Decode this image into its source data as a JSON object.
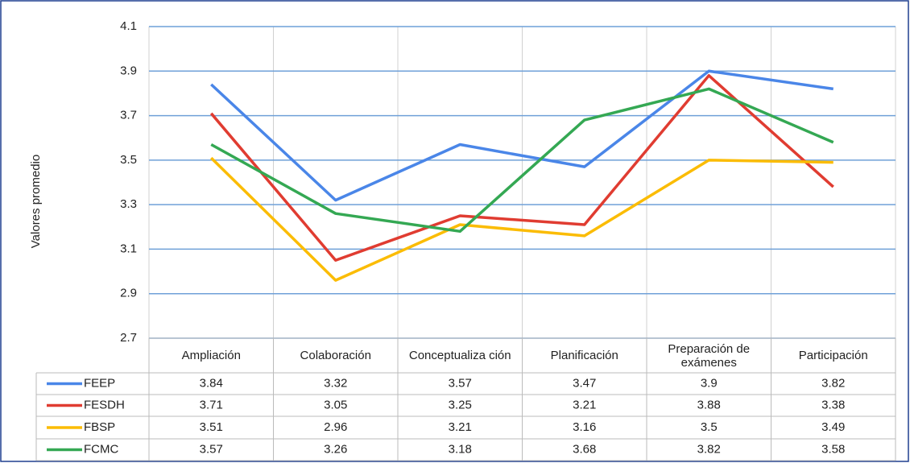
{
  "chart_data": {
    "type": "line",
    "y_label": "Valores promedio",
    "categories": [
      "Ampliación",
      "Colaboración",
      "Conceptualiza ción",
      "Planificación",
      "Preparación de exámenes",
      "Participación"
    ],
    "series": [
      {
        "name": "FEEP",
        "color": "#4a86e8",
        "values": [
          3.84,
          3.32,
          3.57,
          3.47,
          3.9,
          3.82
        ]
      },
      {
        "name": "FESDH",
        "color": "#e03c31",
        "values": [
          3.71,
          3.05,
          3.25,
          3.21,
          3.88,
          3.38
        ]
      },
      {
        "name": "FBSP",
        "color": "#fbbc04",
        "values": [
          3.51,
          2.96,
          3.21,
          3.16,
          3.5,
          3.49
        ]
      },
      {
        "name": "FCMC",
        "color": "#34a853",
        "values": [
          3.57,
          3.26,
          3.18,
          3.68,
          3.82,
          3.58
        ]
      }
    ],
    "ylim": [
      2.7,
      4.1
    ],
    "yticks": [
      2.7,
      2.9,
      3.1,
      3.3,
      3.5,
      3.7,
      3.9,
      4.1
    ],
    "grid": true
  }
}
